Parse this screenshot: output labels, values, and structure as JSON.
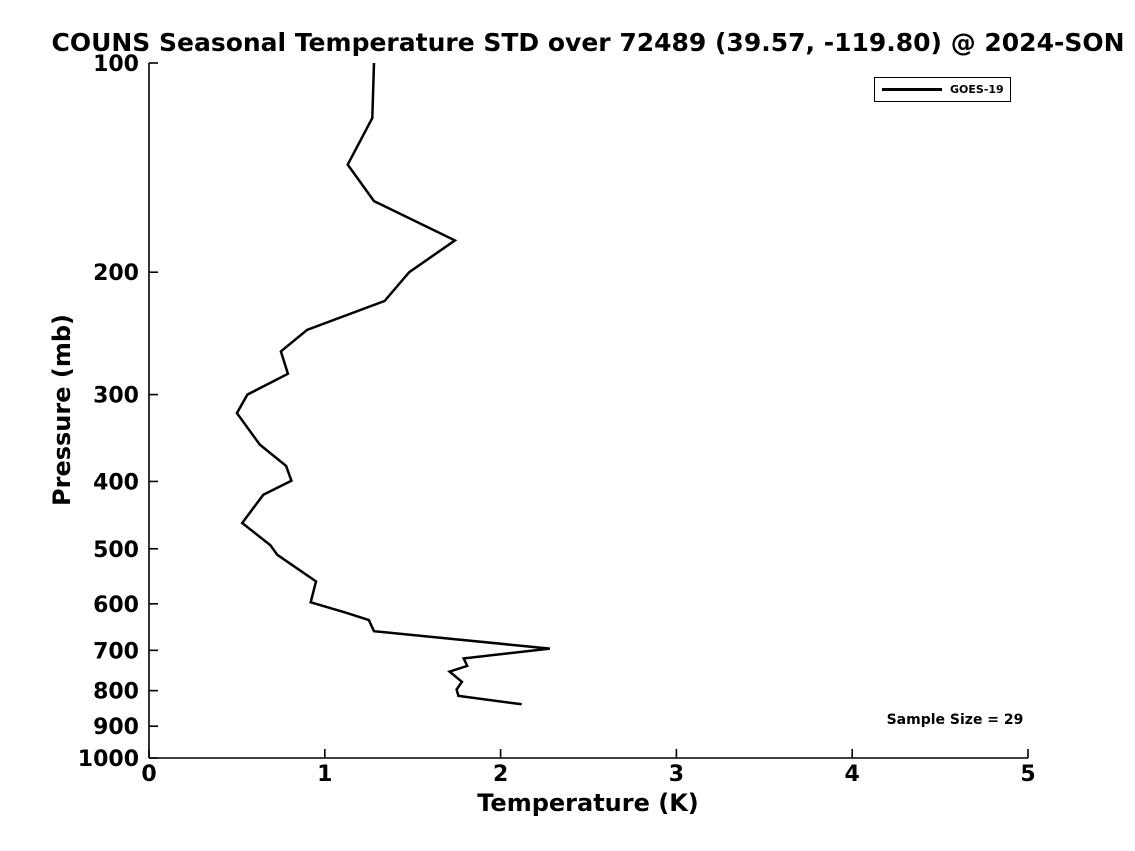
{
  "chart": {
    "title": "COUNS Seasonal Temperature STD over 72489 (39.57, -119.80) @ 2024-SON",
    "xlabel": "Temperature (K)",
    "ylabel": "Pressure (mb)"
  },
  "legend": {
    "label": "GOES-19",
    "position": "top-right",
    "line_color": "#000000"
  },
  "annotations": {
    "sample_size": "Sample Size = 29"
  },
  "colors": {
    "line": "#000000",
    "background": "#ffffff",
    "text": "#000000"
  },
  "chart_data": {
    "type": "line",
    "title": "COUNS Seasonal Temperature STD over 72489 (39.57, -119.80) @ 2024-SON",
    "xlabel": "Temperature (K)",
    "ylabel": "Pressure (mb)",
    "xlim": [
      0,
      5
    ],
    "x_ticks": [
      0,
      1,
      2,
      3,
      4,
      5
    ],
    "ylim": [
      100,
      1000
    ],
    "y_ticks": [
      100,
      200,
      300,
      400,
      500,
      600,
      700,
      800,
      900,
      1000
    ],
    "y_scale": "log",
    "y_inverted": true,
    "grid": false,
    "legend_position": "top-right",
    "sample_size": 29,
    "series": [
      {
        "name": "GOES-19",
        "color": "#000000",
        "x": [
          1.28,
          1.27,
          1.13,
          1.28,
          1.74,
          1.48,
          1.34,
          0.9,
          0.75,
          0.79,
          0.56,
          0.5,
          0.63,
          0.78,
          0.81,
          0.65,
          0.53,
          0.69,
          0.73,
          0.95,
          0.92,
          1.12,
          1.25,
          1.28,
          2.28,
          1.79,
          1.81,
          1.71,
          1.78,
          1.75,
          1.76,
          2.12
        ],
        "y": [
          100,
          120,
          140,
          158,
          180,
          200,
          220,
          242,
          260,
          280,
          300,
          319,
          354,
          380,
          399,
          418,
          459,
          494,
          510,
          557,
          597,
          618,
          633,
          657,
          696,
          719,
          737,
          751,
          777,
          797,
          814,
          837
        ]
      }
    ]
  }
}
